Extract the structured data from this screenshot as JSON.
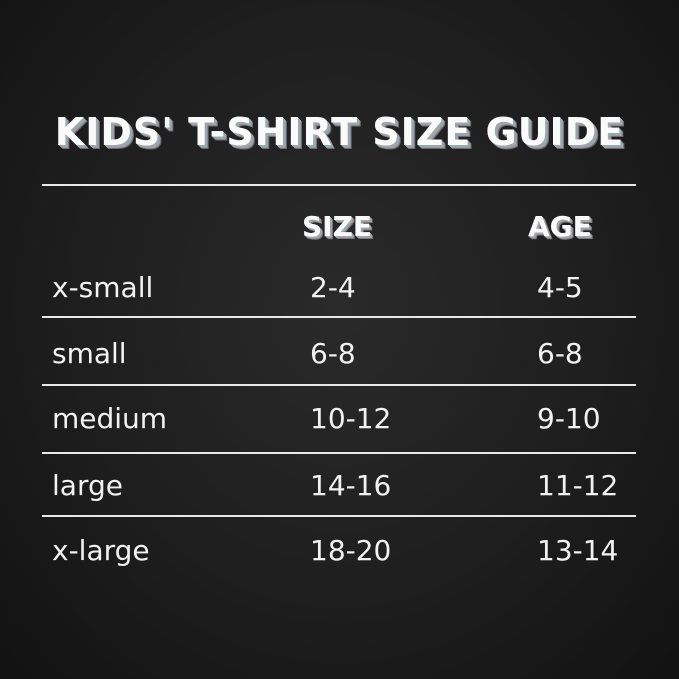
{
  "title": "KIDS' T-SHIRT SIZE GUIDE",
  "headers": {
    "size": "SIZE",
    "age": "AGE"
  },
  "rows": [
    {
      "label": "x-small",
      "size": "2-4",
      "age": "4-5"
    },
    {
      "label": "small",
      "size": "6-8",
      "age": "6-8"
    },
    {
      "label": "medium",
      "size": "10-12",
      "age": "9-10"
    },
    {
      "label": "large",
      "size": "14-16",
      "age": "11-12"
    },
    {
      "label": "x-large",
      "size": "18-20",
      "age": "13-14"
    }
  ]
}
